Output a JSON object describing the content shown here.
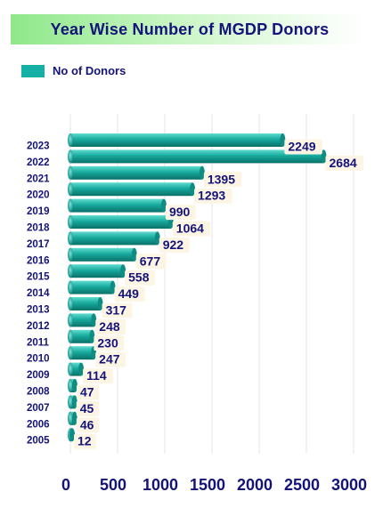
{
  "chart_data": {
    "type": "bar",
    "orientation": "horizontal",
    "title": "Year Wise Number of MGDP Donors",
    "legend": {
      "position": "top-left",
      "entries": [
        {
          "name": "No of Donors",
          "color": "#15b0a4"
        }
      ]
    },
    "categories": [
      "2023",
      "2022",
      "2021",
      "2020",
      "2019",
      "2018",
      "2017",
      "2016",
      "2015",
      "2014",
      "2013",
      "2012",
      "2011",
      "2010",
      "2009",
      "2008",
      "2007",
      "2006",
      "2005"
    ],
    "series": [
      {
        "name": "No of Donors",
        "values": [
          2249,
          2684,
          1395,
          1293,
          990,
          1064,
          922,
          677,
          558,
          449,
          317,
          248,
          230,
          247,
          114,
          47,
          45,
          46,
          12
        ]
      }
    ],
    "xlim": [
      0,
      3000
    ],
    "xticks": [
      "0",
      "500",
      "1000",
      "1500",
      "2000",
      "2500",
      "3000"
    ],
    "grid": true,
    "colors": {
      "bar": "#15b0a4",
      "text": "#14137a",
      "label_bg": "#fdf5e3"
    }
  }
}
